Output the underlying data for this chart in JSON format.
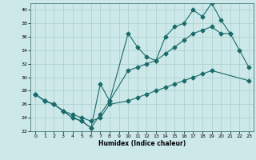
{
  "xlabel": "Humidex (Indice chaleur)",
  "bg_color": "#cce8e8",
  "grid_color": "#aacccc",
  "line_color": "#1a6b6b",
  "xlim": [
    -0.5,
    23.5
  ],
  "ylim": [
    22,
    41
  ],
  "yticks": [
    22,
    24,
    26,
    28,
    30,
    32,
    34,
    36,
    38,
    40
  ],
  "xticks": [
    0,
    1,
    2,
    3,
    4,
    5,
    6,
    7,
    8,
    9,
    10,
    11,
    12,
    13,
    14,
    15,
    16,
    17,
    18,
    19,
    20,
    21,
    22,
    23
  ],
  "series1_x": [
    0,
    1,
    2,
    3,
    4,
    5,
    6,
    7,
    8,
    10,
    11,
    12,
    13,
    14,
    15,
    16,
    17,
    18,
    19,
    20,
    21,
    22,
    23
  ],
  "series1_y": [
    27.5,
    26.5,
    26.0,
    25.0,
    24.0,
    23.5,
    22.5,
    29.0,
    26.5,
    36.5,
    34.5,
    33.0,
    32.5,
    36.0,
    37.5,
    38.0,
    40.0,
    39.0,
    41.0,
    38.5,
    36.5,
    34.0,
    31.5
  ],
  "series2_x": [
    0,
    1,
    2,
    3,
    4,
    5,
    6,
    7,
    8,
    10,
    11,
    12,
    13,
    14,
    15,
    16,
    17,
    18,
    19,
    20,
    21
  ],
  "series2_y": [
    27.5,
    26.5,
    26.0,
    25.0,
    24.0,
    23.5,
    22.5,
    24.5,
    26.5,
    31.0,
    31.5,
    32.0,
    32.5,
    33.5,
    34.5,
    35.5,
    36.5,
    37.0,
    37.5,
    36.5,
    36.5
  ],
  "series3_x": [
    0,
    1,
    2,
    3,
    4,
    5,
    6,
    7,
    8,
    10,
    11,
    12,
    13,
    14,
    15,
    16,
    17,
    18,
    19,
    23
  ],
  "series3_y": [
    27.5,
    26.5,
    26.0,
    25.0,
    24.5,
    24.0,
    23.5,
    24.0,
    26.0,
    26.5,
    27.0,
    27.5,
    28.0,
    28.5,
    29.0,
    29.5,
    30.0,
    30.5,
    31.0,
    29.5
  ]
}
